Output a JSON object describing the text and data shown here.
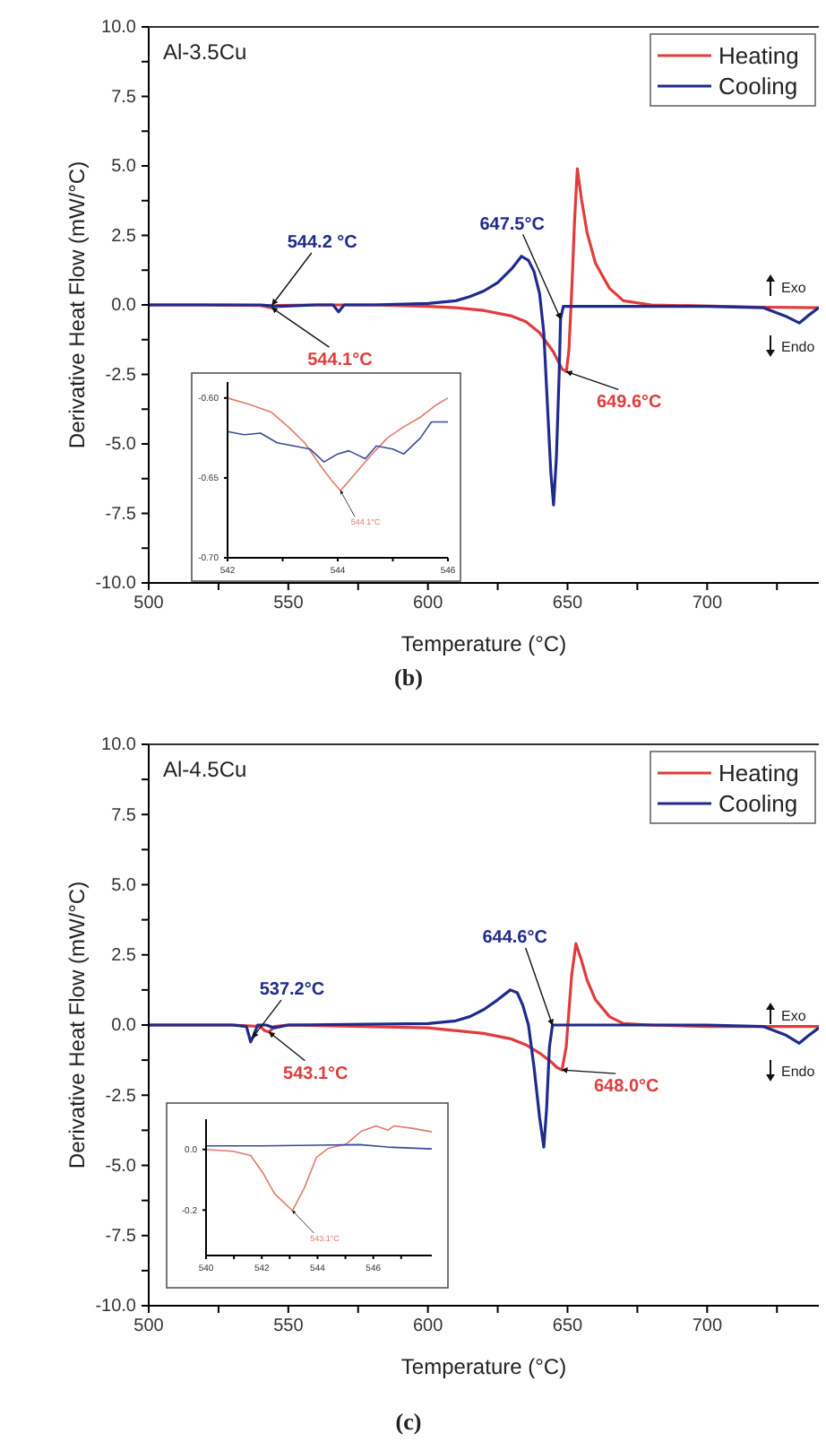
{
  "chart_data": [
    {
      "type": "line",
      "title": "Al-3.5Cu",
      "xlabel": "Temperature (°C)",
      "ylabel": "Derivative Heat Flow (mW/°C)",
      "xlim": [
        500,
        740
      ],
      "ylim": [
        -10,
        10
      ],
      "xticks": [
        500,
        {
          "value": 525,
          "label": null
        },
        550,
        {
          "value": 575,
          "label": null
        },
        600,
        {
          "value": 625,
          "label": null
        },
        650,
        {
          "value": 675,
          "label": null
        },
        700,
        {
          "value": 725,
          "label": null
        }
      ],
      "yticks": [
        {
          "value": -10,
          "label": "-10.0"
        },
        {
          "value": -8.75,
          "label": null
        },
        {
          "value": -7.5,
          "label": "-7.5"
        },
        {
          "value": -6.25,
          "label": null
        },
        {
          "value": -5,
          "label": "-5.0"
        },
        {
          "value": -3.75,
          "label": null
        },
        {
          "value": -2.5,
          "label": "-2.5"
        },
        {
          "value": -1.25,
          "label": null
        },
        {
          "value": 0,
          "label": "0.0"
        },
        {
          "value": 1.25,
          "label": null
        },
        {
          "value": 2.5,
          "label": "2.5"
        },
        {
          "value": 3.75,
          "label": null
        },
        {
          "value": 5,
          "label": "5.0"
        },
        {
          "value": 6.25,
          "label": null
        },
        {
          "value": 7.5,
          "label": "7.5"
        },
        {
          "value": 8.75,
          "label": null
        },
        {
          "value": 10,
          "label": "10.0"
        }
      ],
      "legend": "top right",
      "series": [
        {
          "name": "Heating",
          "color": "#e03c3c",
          "x": [
            500,
            520,
            540,
            544,
            546,
            560,
            580,
            600,
            610,
            620,
            630,
            635,
            640,
            645,
            648,
            649.6,
            650.5,
            651.5,
            652.5,
            653.5,
            655,
            657,
            660,
            665,
            670,
            680,
            700,
            720,
            740
          ],
          "values": [
            0,
            0,
            -0.02,
            -0.1,
            -0.02,
            0,
            0,
            -0.05,
            -0.1,
            -0.2,
            -0.4,
            -0.6,
            -1.0,
            -1.7,
            -2.3,
            -2.4,
            -1.6,
            0.5,
            3.0,
            4.9,
            3.8,
            2.6,
            1.5,
            0.6,
            0.15,
            0,
            null,
            -0.08,
            -0.1
          ]
        },
        {
          "name": "Cooling",
          "color": "#1f2a8c",
          "x": [
            500,
            540,
            547,
            560,
            566,
            568,
            570,
            580,
            600,
            610,
            615,
            620,
            625,
            630,
            633.5,
            636,
            638,
            640,
            641.5,
            643,
            644,
            645,
            646,
            647,
            647.5,
            648.5,
            660,
            700,
            720,
            728,
            733,
            736,
            740
          ],
          "values": [
            0,
            0,
            -0.05,
            0,
            0,
            -0.25,
            0,
            0,
            0.05,
            0.15,
            0.3,
            0.5,
            0.8,
            1.3,
            1.75,
            1.6,
            1.2,
            0.4,
            -1.0,
            -4.0,
            -6.0,
            -7.2,
            -5.5,
            -2.5,
            -0.5,
            -0.05,
            -0.05,
            -0.05,
            -0.1,
            -0.4,
            -0.65,
            -0.4,
            -0.1
          ]
        }
      ],
      "annotations": [
        {
          "text": "544.2 °C",
          "x": 544.2,
          "y": 0
        },
        {
          "text": "544.1°C",
          "x": 544.1,
          "y": -0.1
        },
        {
          "text": "647.5°C",
          "x": 647.5,
          "y": -0.5
        },
        {
          "text": "649.6°C",
          "x": 649.6,
          "y": -2.4
        },
        "Exo",
        "Endo",
        "(b)"
      ]
    },
    {
      "type": "line",
      "xlim": [
        542,
        546
      ],
      "ylim": [
        -0.7,
        -0.59
      ],
      "xticks": [
        542,
        {
          "value": 543,
          "label": null
        },
        544,
        {
          "value": 545,
          "label": null
        },
        546
      ],
      "yticks": [
        {
          "value": -0.7,
          "label": "-0.70"
        },
        {
          "value": -0.65,
          "label": "-0.65"
        },
        {
          "value": -0.6,
          "label": "-0.60"
        }
      ],
      "series": [
        {
          "color": "#e07a6a",
          "x": [
            542,
            542.4,
            542.8,
            543.1,
            543.4,
            543.7,
            543.9,
            544.05,
            544.3,
            544.6,
            544.9,
            545.2,
            545.5,
            545.8,
            546
          ],
          "values": [
            -0.6,
            -0.604,
            -0.609,
            -0.618,
            -0.628,
            -0.643,
            -0.652,
            -0.658,
            -0.648,
            -0.636,
            -0.625,
            -0.618,
            -0.612,
            -0.604,
            -0.6
          ]
        },
        {
          "color": "#3a4a9a",
          "x": [
            542,
            542.3,
            542.6,
            542.9,
            543.2,
            543.5,
            543.75,
            544,
            544.2,
            544.5,
            544.7,
            545,
            545.2,
            545.5,
            545.7,
            546
          ],
          "values": [
            -0.621,
            -0.623,
            -0.622,
            -0.628,
            -0.63,
            -0.632,
            -0.64,
            -0.635,
            -0.633,
            -0.638,
            -0.63,
            -0.632,
            -0.635,
            -0.625,
            -0.615,
            -0.615
          ]
        }
      ],
      "annotations": [
        {
          "text": "544.1°C",
          "x": 544.05,
          "y": -0.658
        }
      ]
    },
    {
      "type": "line",
      "title": "Al-4.5Cu",
      "xlabel": "Temperature (°C)",
      "ylabel": "Derivative Heat Flow (mW/°C)",
      "xlim": [
        500,
        740
      ],
      "ylim": [
        -10,
        10
      ],
      "xticks": [
        500,
        {
          "value": 525,
          "label": null
        },
        550,
        {
          "value": 575,
          "label": null
        },
        600,
        {
          "value": 625,
          "label": null
        },
        650,
        {
          "value": 675,
          "label": null
        },
        700,
        {
          "value": 725,
          "label": null
        }
      ],
      "yticks": [
        {
          "value": -10,
          "label": "-10.0"
        },
        {
          "value": -8.75,
          "label": null
        },
        {
          "value": -7.5,
          "label": "-7.5"
        },
        {
          "value": -6.25,
          "label": null
        },
        {
          "value": -5,
          "label": "-5.0"
        },
        {
          "value": -3.75,
          "label": null
        },
        {
          "value": -2.5,
          "label": "-2.5"
        },
        {
          "value": -1.25,
          "label": null
        },
        {
          "value": 0,
          "label": "0.0"
        },
        {
          "value": 1.25,
          "label": null
        },
        {
          "value": 2.5,
          "label": "2.5"
        },
        {
          "value": 3.75,
          "label": null
        },
        {
          "value": 5,
          "label": "5.0"
        },
        {
          "value": 6.25,
          "label": null
        },
        {
          "value": 7.5,
          "label": "7.5"
        },
        {
          "value": 8.75,
          "label": null
        },
        {
          "value": 10,
          "label": "10.0"
        }
      ],
      "legend": "top right",
      "series": [
        {
          "name": "Heating",
          "color": "#e03c3c",
          "x": [
            500,
            530,
            540,
            541.5,
            543.1,
            545,
            550,
            600,
            620,
            630,
            635,
            640,
            644,
            646,
            648,
            649.5,
            650.5,
            651.5,
            653,
            655,
            657,
            660,
            665,
            670,
            680,
            700,
            740
          ],
          "values": [
            0,
            0,
            -0.05,
            -0.2,
            -0.25,
            -0.05,
            0,
            -0.1,
            -0.3,
            -0.5,
            -0.7,
            -1.0,
            -1.3,
            -1.5,
            -1.6,
            -0.8,
            0.5,
            1.8,
            2.9,
            2.3,
            1.6,
            0.9,
            0.3,
            0.05,
            0,
            -0.05,
            -0.05
          ]
        },
        {
          "name": "Cooling",
          "color": "#1f2a8c",
          "x": [
            500,
            530,
            535,
            536.5,
            537.5,
            539,
            542,
            545,
            550,
            600,
            610,
            615,
            620,
            625,
            629.5,
            632,
            634,
            636,
            638,
            640,
            641.5,
            642.5,
            643.5,
            644.6,
            660,
            700,
            720,
            728,
            733,
            736,
            740
          ],
          "values": [
            0,
            0,
            -0.05,
            -0.6,
            -0.4,
            0,
            0,
            -0.1,
            0,
            0.05,
            0.15,
            0.3,
            0.55,
            0.9,
            1.25,
            1.15,
            0.7,
            0,
            -1.5,
            -3.3,
            -4.35,
            -3.0,
            -0.8,
            0,
            0,
            0,
            -0.05,
            -0.35,
            -0.65,
            -0.4,
            -0.1
          ]
        }
      ],
      "annotations": [
        {
          "text": "537.2°C",
          "x": 537.2,
          "y": -0.45
        },
        {
          "text": "543.1°C",
          "x": 543.1,
          "y": -0.25
        },
        {
          "text": "644.6°C",
          "x": 644.6,
          "y": 0
        },
        {
          "text": "648.0°C",
          "x": 648,
          "y": -1.6
        },
        "Exo",
        "Endo",
        "(c)"
      ]
    },
    {
      "type": "line",
      "xlim": [
        540,
        548.1
      ],
      "ylim": [
        -0.35,
        0.1
      ],
      "xticks": [
        540,
        {
          "value": 541,
          "label": null
        },
        542,
        {
          "value": 543,
          "label": null
        },
        544,
        {
          "value": 545,
          "label": null
        },
        546,
        {
          "value": 547,
          "label": null
        }
      ],
      "yticks": [
        {
          "value": -0.2,
          "label": "-0.2"
        },
        {
          "value": 0,
          "label": "0.0"
        }
      ],
      "series": [
        {
          "color": "#e07a6a",
          "x": [
            540,
            540.96,
            541.6,
            542.03,
            542.46,
            543.1,
            543.53,
            543.96,
            544.39,
            545.03,
            545.57,
            546.1,
            546.53,
            546.75,
            547.39,
            548.1
          ],
          "values": [
            0,
            -0.006,
            -0.02,
            -0.076,
            -0.146,
            -0.202,
            -0.126,
            -0.026,
            0.004,
            0.018,
            0.06,
            0.078,
            0.064,
            0.078,
            0.07,
            0.058
          ]
        },
        {
          "color": "#3a4a9a",
          "x": [
            540,
            542,
            544,
            545.5,
            546.5,
            548.1
          ],
          "values": [
            0.012,
            0.012,
            0.014,
            0.016,
            0.008,
            0.002
          ]
        }
      ],
      "annotations": [
        {
          "text": "543.1°C",
          "x": 543.1,
          "y": -0.202
        }
      ]
    }
  ]
}
